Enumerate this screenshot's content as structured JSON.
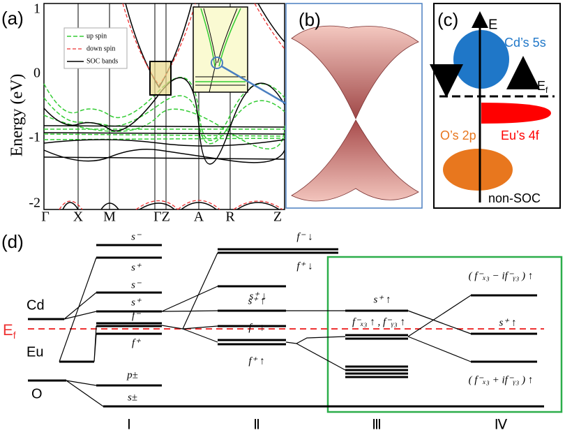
{
  "panel_a": {
    "label": "(a)",
    "ylabel": "Energy (eV)",
    "yticks": [
      "1",
      "0",
      "-1",
      "-2"
    ],
    "xticks": [
      "Γ",
      "X",
      "M",
      "ΓZ",
      "A",
      "R",
      "Z"
    ],
    "legend": [
      "up spin",
      "down spin",
      "SOC bands"
    ]
  },
  "panel_b": {
    "label": "(b)"
  },
  "panel_c": {
    "label": "(c)",
    "axis": "E",
    "cd": "Cd’s 5s",
    "ef": [
      "E",
      "f"
    ],
    "eu": "Eu’s 4f",
    "o": "O’s 2p",
    "note": "non-SOC"
  },
  "panel_d": {
    "label": "(d)",
    "atoms": [
      "Cd",
      "Eu",
      "O"
    ],
    "ef": [
      "E",
      "f"
    ],
    "col1": [
      "s⁻",
      "s⁺",
      "s⁻",
      "s⁺",
      "f⁻",
      "f⁺",
      "p±",
      "s±"
    ],
    "col2": [
      "f⁻ ↓",
      "f⁺ ↓",
      "s⁺ ↓",
      "s⁺ ↑",
      "f⁻ ↑",
      "f⁺ ↑"
    ],
    "col3": [
      "s⁺ ↑",
      "f⁻ₓ₃ ↑ , f⁻ᵧ₃ ↑"
    ],
    "col4": [
      "( f⁻ₓ₃ − if⁻ᵧ₃ ) ↑",
      "s⁺ ↑",
      "( f⁻ₓ₃ + if⁻ᵧ₃ ) ↑"
    ],
    "stages": [
      "Ⅰ",
      "Ⅱ",
      "Ⅲ",
      "Ⅳ"
    ]
  }
}
